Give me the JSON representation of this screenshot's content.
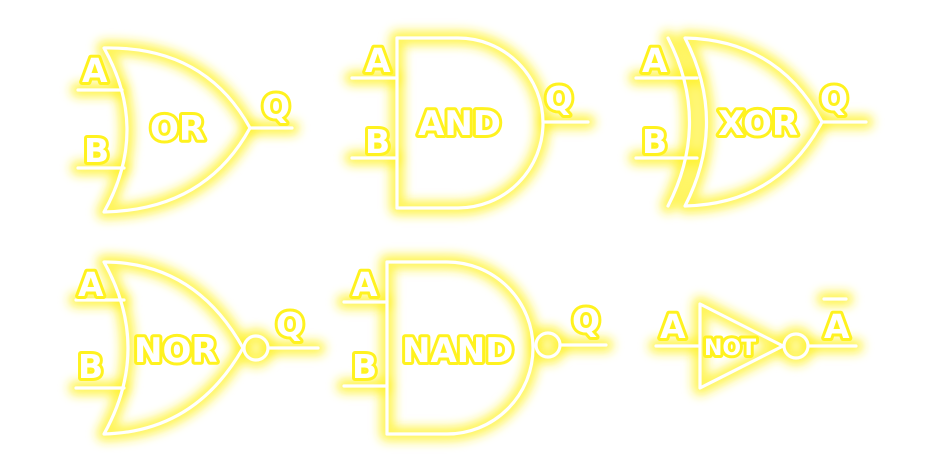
{
  "colors": {
    "glow": "#fff21f",
    "line": "#ffffff",
    "background": "#ffffff"
  },
  "gates": {
    "or": {
      "name": "OR",
      "in_a": "A",
      "in_b": "B",
      "out": "Q"
    },
    "and": {
      "name": "AND",
      "in_a": "A",
      "in_b": "B",
      "out": "Q"
    },
    "xor": {
      "name": "XOR",
      "in_a": "A",
      "in_b": "B",
      "out": "Q"
    },
    "nor": {
      "name": "NOR",
      "in_a": "A",
      "in_b": "B",
      "out": "Q"
    },
    "nand": {
      "name": "NAND",
      "in_a": "A",
      "in_b": "B",
      "out": "Q"
    },
    "not": {
      "name": "NOT",
      "in_a": "A",
      "out": "A"
    }
  }
}
